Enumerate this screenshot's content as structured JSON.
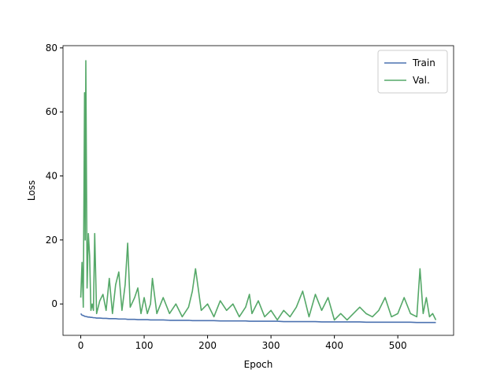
{
  "chart_data": {
    "type": "line",
    "xlabel": "Epoch",
    "ylabel": "Loss",
    "x": [
      0,
      2,
      4,
      6,
      7,
      8,
      10,
      12,
      14,
      16,
      18,
      20,
      22,
      25,
      30,
      35,
      40,
      45,
      50,
      55,
      60,
      65,
      70,
      74,
      78,
      85,
      90,
      95,
      100,
      105,
      110,
      113,
      120,
      130,
      140,
      150,
      160,
      170,
      176,
      181,
      190,
      200,
      210,
      220,
      230,
      240,
      250,
      260,
      266,
      270,
      280,
      290,
      300,
      310,
      320,
      330,
      340,
      350,
      360,
      370,
      380,
      390,
      400,
      410,
      420,
      430,
      440,
      450,
      460,
      470,
      480,
      490,
      500,
      510,
      520,
      530,
      535,
      540,
      545,
      550,
      555,
      560
    ],
    "series": [
      {
        "name": "Train",
        "color": "#4c72b0",
        "values": [
          -3.0,
          -3.5,
          -3.6,
          -3.8,
          -3.9,
          -3.9,
          -4.0,
          -4.1,
          -4.1,
          -4.2,
          -4.2,
          -4.3,
          -4.3,
          -4.4,
          -4.4,
          -4.5,
          -4.5,
          -4.6,
          -4.6,
          -4.6,
          -4.7,
          -4.7,
          -4.7,
          -4.8,
          -4.8,
          -4.8,
          -4.9,
          -4.9,
          -4.9,
          -4.9,
          -5.0,
          -5.0,
          -5.0,
          -5.0,
          -5.1,
          -5.1,
          -5.1,
          -5.1,
          -5.2,
          -5.2,
          -5.2,
          -5.2,
          -5.2,
          -5.3,
          -5.3,
          -5.3,
          -5.3,
          -5.3,
          -5.4,
          -5.4,
          -5.4,
          -5.4,
          -5.4,
          -5.4,
          -5.5,
          -5.5,
          -5.5,
          -5.5,
          -5.5,
          -5.5,
          -5.6,
          -5.6,
          -5.6,
          -5.6,
          -5.6,
          -5.6,
          -5.6,
          -5.7,
          -5.7,
          -5.7,
          -5.7,
          -5.7,
          -5.7,
          -5.7,
          -5.7,
          -5.8,
          -5.8,
          -5.8,
          -5.8,
          -5.8,
          -5.8,
          -5.8
        ]
      },
      {
        "name": "Val.",
        "color": "#55a868",
        "values": [
          2,
          13,
          -1,
          66,
          20,
          76,
          5,
          22,
          15,
          -2,
          0,
          -2,
          22,
          -3,
          1,
          3,
          -2,
          8,
          -3,
          6,
          10,
          -2,
          6,
          19,
          -1,
          2,
          5,
          -3,
          2,
          -3,
          0,
          8,
          -3,
          2,
          -3,
          0,
          -4,
          -1,
          4,
          11,
          -2,
          0,
          -4,
          1,
          -2,
          0,
          -4,
          -1,
          3,
          -3,
          1,
          -4,
          -2,
          -5,
          -2,
          -4,
          -1,
          4,
          -4,
          3,
          -2,
          2,
          -5,
          -3,
          -5,
          -3,
          -1,
          -3,
          -4,
          -2,
          2,
          -4,
          -3,
          2,
          -3,
          -4,
          11,
          -3,
          2,
          -4,
          -3,
          -5
        ]
      }
    ],
    "xlim": [
      -28,
      588
    ],
    "ylim": [
      -9.8,
      80.7
    ],
    "xticks": [
      0,
      100,
      200,
      300,
      400,
      500
    ],
    "yticks": [
      0,
      20,
      40,
      60,
      80
    ],
    "legend": "upper right"
  }
}
